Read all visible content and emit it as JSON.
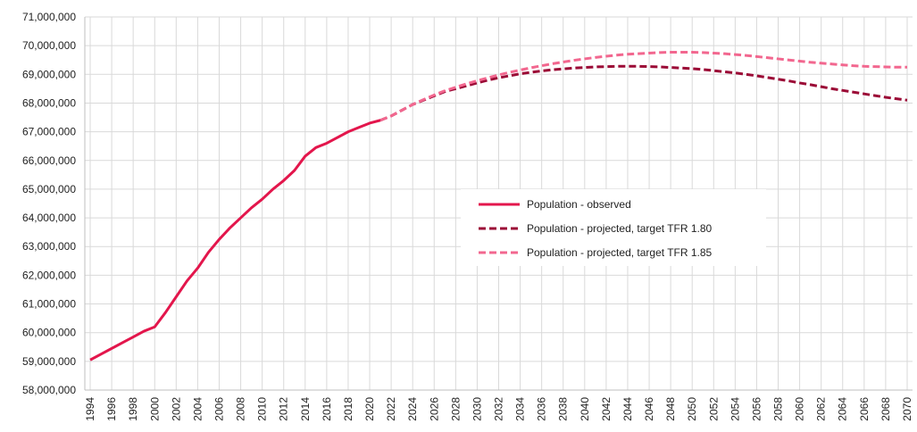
{
  "chart_data": {
    "type": "line",
    "x": [
      1994,
      1995,
      1996,
      1997,
      1998,
      1999,
      2000,
      2001,
      2002,
      2003,
      2004,
      2005,
      2006,
      2007,
      2008,
      2009,
      2010,
      2011,
      2012,
      2013,
      2014,
      2015,
      2016,
      2017,
      2018,
      2019,
      2020,
      2021,
      2022,
      2023,
      2024,
      2025,
      2026,
      2027,
      2028,
      2029,
      2030,
      2031,
      2032,
      2033,
      2034,
      2035,
      2036,
      2037,
      2038,
      2039,
      2040,
      2041,
      2042,
      2043,
      2044,
      2045,
      2046,
      2047,
      2048,
      2049,
      2050,
      2051,
      2052,
      2053,
      2054,
      2055,
      2056,
      2057,
      2058,
      2059,
      2060,
      2061,
      2062,
      2063,
      2064,
      2065,
      2066,
      2067,
      2068,
      2069,
      2070
    ],
    "series": [
      {
        "name": "Population - observed",
        "color": "#e3164c",
        "dashed": false,
        "values": [
          59050000,
          59250000,
          59450000,
          59650000,
          59850000,
          60050000,
          60200000,
          60700000,
          61250000,
          61800000,
          62250000,
          62800000,
          63250000,
          63650000,
          64000000,
          64350000,
          64650000,
          65000000,
          65300000,
          65650000,
          66150000,
          66450000,
          66600000,
          66800000,
          67000000,
          67150000,
          67300000,
          67400000,
          null,
          null,
          null,
          null,
          null,
          null,
          null,
          null,
          null,
          null,
          null,
          null,
          null,
          null,
          null,
          null,
          null,
          null,
          null,
          null,
          null,
          null,
          null,
          null,
          null,
          null,
          null,
          null,
          null,
          null,
          null,
          null,
          null,
          null,
          null,
          null,
          null,
          null,
          null,
          null,
          null,
          null,
          null,
          null,
          null,
          null,
          null,
          null,
          null
        ]
      },
      {
        "name": "Population - projected, target TFR 1.80",
        "color": "#9b0a36",
        "dashed": true,
        "values": [
          null,
          null,
          null,
          null,
          null,
          null,
          null,
          null,
          null,
          null,
          null,
          null,
          null,
          null,
          null,
          null,
          null,
          null,
          null,
          null,
          null,
          null,
          null,
          null,
          null,
          null,
          null,
          67400000,
          67550000,
          67750000,
          67950000,
          68100000,
          68250000,
          68400000,
          68500000,
          68600000,
          68700000,
          68800000,
          68880000,
          68950000,
          69020000,
          69070000,
          69120000,
          69160000,
          69190000,
          69220000,
          69240000,
          69260000,
          69270000,
          69280000,
          69280000,
          69280000,
          69270000,
          69260000,
          69240000,
          69220000,
          69200000,
          69170000,
          69130000,
          69090000,
          69050000,
          69000000,
          68950000,
          68890000,
          68830000,
          68770000,
          68700000,
          68640000,
          68570000,
          68500000,
          68440000,
          68380000,
          68320000,
          68260000,
          68200000,
          68150000,
          68100000
        ]
      },
      {
        "name": "Population - projected, target TFR 1.85",
        "color": "#f2678f",
        "dashed": true,
        "values": [
          null,
          null,
          null,
          null,
          null,
          null,
          null,
          null,
          null,
          null,
          null,
          null,
          null,
          null,
          null,
          null,
          null,
          null,
          null,
          null,
          null,
          null,
          null,
          null,
          null,
          null,
          null,
          67400000,
          67550000,
          67750000,
          67950000,
          68120000,
          68280000,
          68430000,
          68550000,
          68670000,
          68780000,
          68880000,
          68980000,
          69070000,
          69150000,
          69230000,
          69300000,
          69370000,
          69430000,
          69490000,
          69540000,
          69590000,
          69630000,
          69670000,
          69700000,
          69720000,
          69740000,
          69760000,
          69770000,
          69770000,
          69770000,
          69760000,
          69740000,
          69720000,
          69690000,
          69660000,
          69620000,
          69580000,
          69540000,
          69500000,
          69460000,
          69420000,
          69390000,
          69360000,
          69330000,
          69300000,
          69280000,
          69270000,
          69260000,
          69250000,
          69250000
        ]
      }
    ],
    "xlim": [
      1993.5,
      2070.5
    ],
    "xticks": [
      1994,
      1996,
      1998,
      2000,
      2002,
      2004,
      2006,
      2008,
      2010,
      2012,
      2014,
      2016,
      2018,
      2020,
      2022,
      2024,
      2026,
      2028,
      2030,
      2032,
      2034,
      2036,
      2038,
      2040,
      2042,
      2044,
      2046,
      2048,
      2050,
      2052,
      2054,
      2056,
      2058,
      2060,
      2062,
      2064,
      2066,
      2068,
      2070
    ],
    "ylim": [
      58000000,
      71000000
    ],
    "yticks": [
      {
        "value": 58000000,
        "label": "58,000,000"
      },
      {
        "value": 59000000,
        "label": "59,000,000"
      },
      {
        "value": 60000000,
        "label": "60,000,000"
      },
      {
        "value": 61000000,
        "label": "61,000,000"
      },
      {
        "value": 62000000,
        "label": "62,000,000"
      },
      {
        "value": 63000000,
        "label": "63,000,000"
      },
      {
        "value": 64000000,
        "label": "64,000,000"
      },
      {
        "value": 65000000,
        "label": "65,000,000"
      },
      {
        "value": 66000000,
        "label": "66,000,000"
      },
      {
        "value": 67000000,
        "label": "67,000,000"
      },
      {
        "value": 68000000,
        "label": "68,000,000"
      },
      {
        "value": 69000000,
        "label": "69,000,000"
      },
      {
        "value": 70000000,
        "label": "70,000,000"
      },
      {
        "value": 71000000,
        "label": "71,000,000"
      }
    ],
    "grid": true,
    "legend_position": "center-right"
  }
}
